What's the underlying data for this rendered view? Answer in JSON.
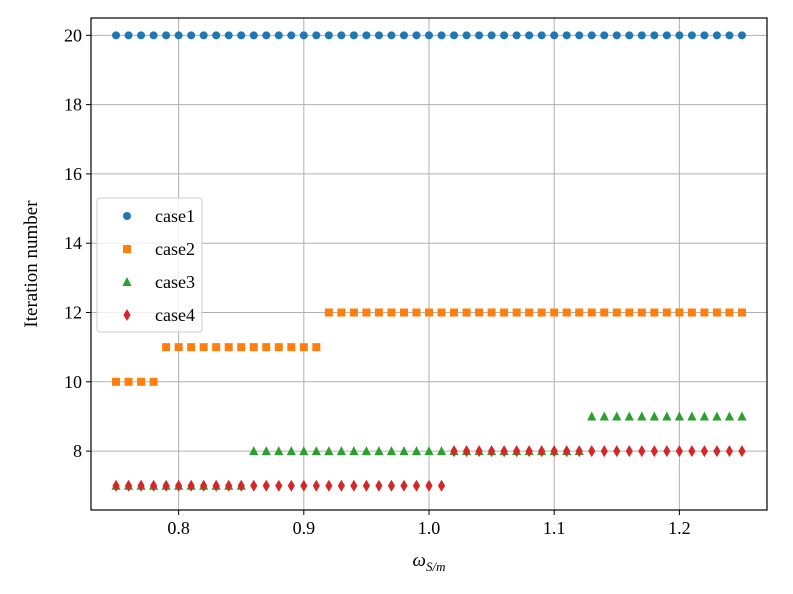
{
  "chart_data": {
    "type": "scatter",
    "title": "",
    "xlabel": "ω_{S/m}",
    "xlabel_main": "ω",
    "xlabel_sub": "S/m",
    "ylabel": "Iteration number",
    "xlim": [
      0.73,
      1.27
    ],
    "ylim": [
      6.3,
      20.5
    ],
    "xticks": [
      0.8,
      0.9,
      1.0,
      1.1,
      1.2
    ],
    "xtick_labels": [
      "0.8",
      "0.9",
      "1.0",
      "1.1",
      "1.2"
    ],
    "yticks": [
      8,
      10,
      12,
      14,
      16,
      18,
      20
    ],
    "ytick_labels": [
      "8",
      "10",
      "12",
      "14",
      "16",
      "18",
      "20"
    ],
    "grid": true,
    "legend_position": "center-left",
    "series": [
      {
        "name": "case1",
        "marker": "circle",
        "color": "#1f77b4",
        "segments": [
          {
            "x_start": 0.75,
            "x_end": 1.25,
            "step": 0.01,
            "y": 20
          }
        ]
      },
      {
        "name": "case2",
        "marker": "square",
        "color": "#ff7f0e",
        "segments": [
          {
            "x_start": 0.75,
            "x_end": 0.78,
            "step": 0.01,
            "y": 10
          },
          {
            "x_start": 0.79,
            "x_end": 0.91,
            "step": 0.01,
            "y": 11
          },
          {
            "x_start": 0.92,
            "x_end": 1.25,
            "step": 0.01,
            "y": 12
          }
        ]
      },
      {
        "name": "case3",
        "marker": "triangle",
        "color": "#2ca02c",
        "segments": [
          {
            "x_start": 0.75,
            "x_end": 0.85,
            "step": 0.01,
            "y": 7
          },
          {
            "x_start": 0.86,
            "x_end": 1.12,
            "step": 0.01,
            "y": 8
          },
          {
            "x_start": 1.13,
            "x_end": 1.25,
            "step": 0.01,
            "y": 9
          }
        ]
      },
      {
        "name": "case4",
        "marker": "diamond",
        "color": "#d62728",
        "segments": [
          {
            "x_start": 0.75,
            "x_end": 1.01,
            "step": 0.01,
            "y": 7
          },
          {
            "x_start": 1.02,
            "x_end": 1.25,
            "step": 0.01,
            "y": 8
          }
        ]
      }
    ]
  }
}
